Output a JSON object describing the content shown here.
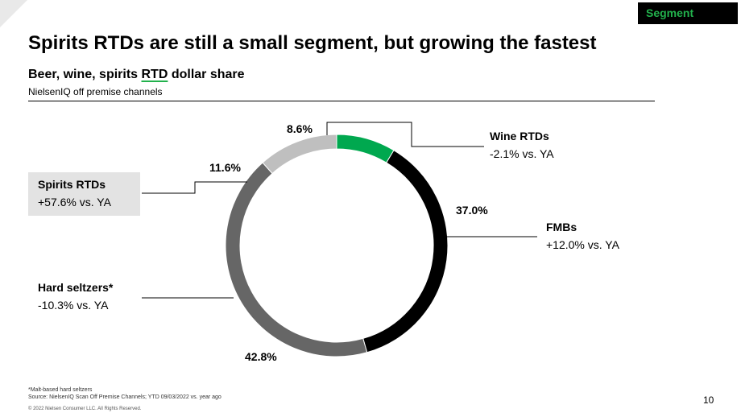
{
  "badge": "Segment",
  "title": "Spirits RTDs are still a small segment, but growing the fastest",
  "subtitle_pre": "Beer, wine, spirits ",
  "subtitle_mark": "RTD",
  "subtitle_post": " dollar share",
  "source_line": "NielsenIQ off premise channels",
  "footnote1": "*Malt-based hard seltzers",
  "footnote2": "Source: NielsenIQ Scan Off Premise Channels; YTD 09/03/2022 vs. year ago",
  "copyright": "© 2022 Nielsen Consumer LLC. All Rights Reserved.",
  "page_number": "10",
  "chart_data": {
    "type": "pie",
    "title": "",
    "slices": [
      {
        "label": "Wine RTDs",
        "value": 8.6,
        "value_label": "8.6%",
        "change": "-2.1% vs. YA",
        "color": "#00a84f"
      },
      {
        "label": "FMBs",
        "value": 37.0,
        "value_label": "37.0%",
        "change": "+12.0% vs. YA",
        "color": "#000000"
      },
      {
        "label": "Hard seltzers*",
        "value": 42.8,
        "value_label": "42.8%",
        "change": "-10.3% vs. YA",
        "color": "#666666"
      },
      {
        "label": "Spirits RTDs",
        "value": 11.6,
        "value_label": "11.6%",
        "change": "+57.6% vs. YA",
        "color": "#bfbfbf"
      }
    ]
  }
}
